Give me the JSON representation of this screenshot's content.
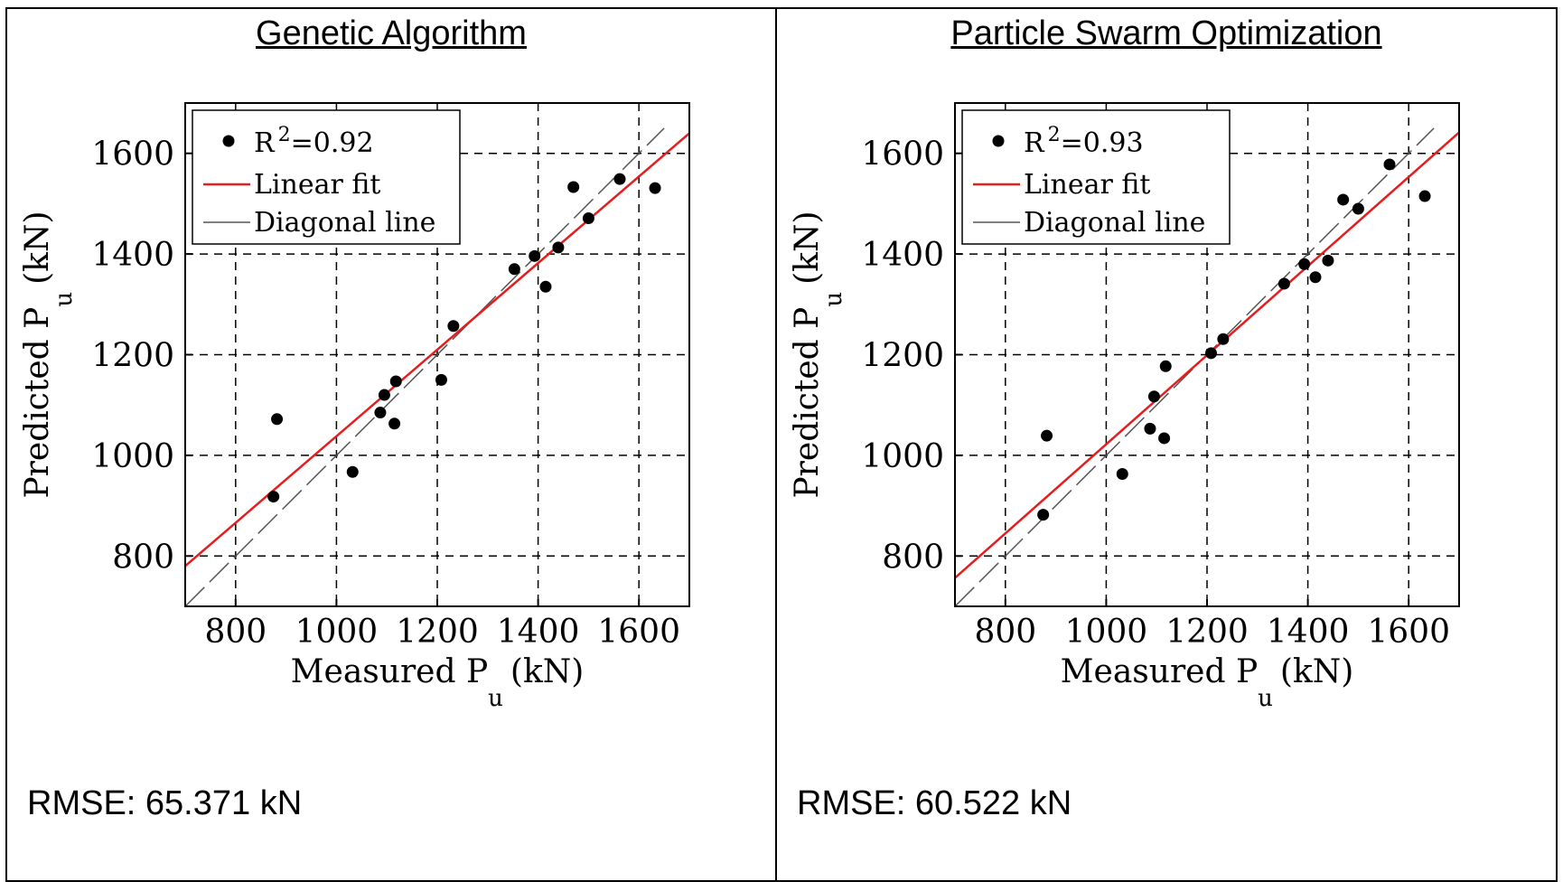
{
  "colors": {
    "fit": "#e41e1e",
    "diagonal": "#555555",
    "points": "#000000",
    "grid": "#000000"
  },
  "chart_data": [
    {
      "type": "scatter",
      "title": "Genetic Algorithm",
      "xlabel_main": "Measured P",
      "xlabel_sub": "u",
      "xlabel_unit": "(kN)",
      "ylabel_main": "Predicted P",
      "ylabel_sub": "u",
      "ylabel_unit": "(kN)",
      "xlim": [
        700,
        1700
      ],
      "ylim": [
        700,
        1700
      ],
      "xticks": [
        800,
        1000,
        1200,
        1400,
        1600
      ],
      "yticks": [
        800,
        1000,
        1200,
        1400,
        1600
      ],
      "grid": true,
      "legend_placement": "top-left",
      "legend": {
        "points_label": "R",
        "points_sup": "2",
        "points_value": "=0.92",
        "fit_label": "Linear fit",
        "diagonal_label": "Diagonal line"
      },
      "points": [
        {
          "x": 875,
          "y": 918
        },
        {
          "x": 882,
          "y": 1072
        },
        {
          "x": 1032,
          "y": 967
        },
        {
          "x": 1087,
          "y": 1085
        },
        {
          "x": 1095,
          "y": 1120
        },
        {
          "x": 1115,
          "y": 1063
        },
        {
          "x": 1118,
          "y": 1147
        },
        {
          "x": 1208,
          "y": 1150
        },
        {
          "x": 1232,
          "y": 1257
        },
        {
          "x": 1353,
          "y": 1370
        },
        {
          "x": 1393,
          "y": 1396
        },
        {
          "x": 1415,
          "y": 1335
        },
        {
          "x": 1440,
          "y": 1413
        },
        {
          "x": 1470,
          "y": 1533
        },
        {
          "x": 1500,
          "y": 1471
        },
        {
          "x": 1562,
          "y": 1549
        },
        {
          "x": 1632,
          "y": 1531
        }
      ],
      "fit": {
        "slope": 0.86,
        "intercept": 178
      },
      "rmse_text": "RMSE: 65.371 kN"
    },
    {
      "type": "scatter",
      "title": "Particle Swarm Optimization",
      "xlabel_main": "Measured P",
      "xlabel_sub": "u",
      "xlabel_unit": "(kN)",
      "ylabel_main": "Predicted P",
      "ylabel_sub": "u",
      "ylabel_unit": "(kN)",
      "xlim": [
        700,
        1700
      ],
      "ylim": [
        700,
        1700
      ],
      "xticks": [
        800,
        1000,
        1200,
        1400,
        1600
      ],
      "yticks": [
        800,
        1000,
        1200,
        1400,
        1600
      ],
      "grid": true,
      "legend_placement": "top-left",
      "legend": {
        "points_label": "R",
        "points_sup": "2",
        "points_value": "=0.93",
        "fit_label": "Linear fit",
        "diagonal_label": "Diagonal line"
      },
      "points": [
        {
          "x": 875,
          "y": 882
        },
        {
          "x": 882,
          "y": 1039
        },
        {
          "x": 1032,
          "y": 963
        },
        {
          "x": 1087,
          "y": 1053
        },
        {
          "x": 1095,
          "y": 1117
        },
        {
          "x": 1115,
          "y": 1034
        },
        {
          "x": 1118,
          "y": 1177
        },
        {
          "x": 1208,
          "y": 1203
        },
        {
          "x": 1232,
          "y": 1231
        },
        {
          "x": 1353,
          "y": 1341
        },
        {
          "x": 1393,
          "y": 1380
        },
        {
          "x": 1415,
          "y": 1354
        },
        {
          "x": 1440,
          "y": 1387
        },
        {
          "x": 1470,
          "y": 1508
        },
        {
          "x": 1500,
          "y": 1490
        },
        {
          "x": 1562,
          "y": 1578
        },
        {
          "x": 1632,
          "y": 1515
        }
      ],
      "fit": {
        "slope": 0.885,
        "intercept": 137
      },
      "rmse_text": "RMSE: 60.522 kN"
    }
  ]
}
